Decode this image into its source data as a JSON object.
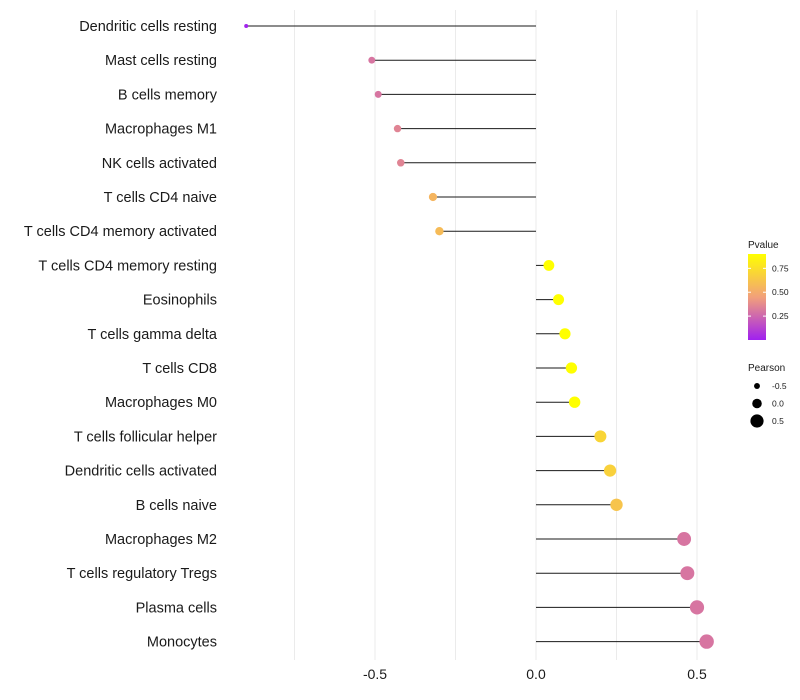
{
  "chart_data": {
    "type": "lollipop",
    "orientation": "horizontal",
    "xlim": [
      -0.92,
      0.56
    ],
    "x_ticks": [
      {
        "value": -0.5,
        "label": "-0.5"
      },
      {
        "value": 0.0,
        "label": "0.0"
      },
      {
        "value": 0.5,
        "label": "0.5"
      }
    ],
    "grid": "vertical only",
    "categories": [
      "Dendritic cells resting",
      "Mast cells resting",
      "B cells memory",
      "Macrophages M1",
      "NK cells activated",
      "T cells CD4 naive",
      "T cells CD4 memory activated",
      "T cells CD4 memory resting",
      "Eosinophils",
      "T cells gamma delta",
      "T cells CD8",
      "Macrophages M0",
      "T cells follicular helper",
      "Dendritic cells activated",
      "B cells naive",
      "Macrophages M2",
      "T cells regulatory  Tregs",
      "Plasma cells",
      "Monocytes"
    ],
    "pearson": [
      -0.9,
      -0.51,
      -0.49,
      -0.43,
      -0.42,
      -0.32,
      -0.3,
      0.04,
      0.07,
      0.09,
      0.11,
      0.12,
      0.2,
      0.23,
      0.25,
      0.46,
      0.47,
      0.5,
      0.53
    ],
    "pvalue": [
      0.01,
      0.3,
      0.3,
      0.35,
      0.35,
      0.55,
      0.58,
      0.97,
      0.95,
      0.92,
      0.92,
      0.9,
      0.7,
      0.68,
      0.62,
      0.3,
      0.3,
      0.3,
      0.3
    ],
    "legend": {
      "color": {
        "title": "Pvalue",
        "range": [
          0.0,
          0.9
        ],
        "colors": [
          "#a020f0",
          "#f2a07a",
          "#ffff00"
        ],
        "ticks": [
          {
            "value": 0.25,
            "label": "0.25"
          },
          {
            "value": 0.5,
            "label": "0.50"
          },
          {
            "value": 0.75,
            "label": "0.75"
          }
        ]
      },
      "size": {
        "title": "Pearson",
        "entries": [
          {
            "value": -0.5,
            "label": "-0.5"
          },
          {
            "value": 0.0,
            "label": "0.0"
          },
          {
            "value": 0.5,
            "label": "0.5"
          }
        ]
      },
      "placement": "right"
    }
  }
}
